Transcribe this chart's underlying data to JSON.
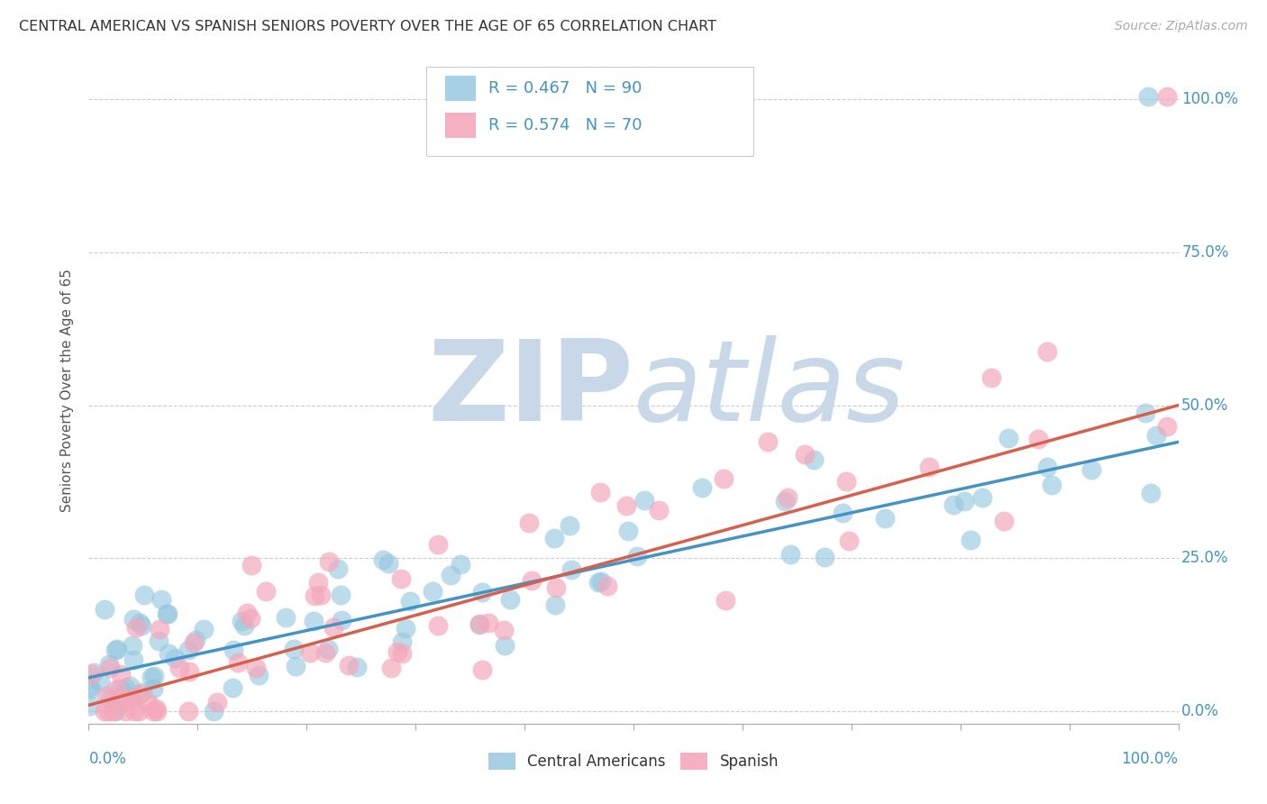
{
  "title": "CENTRAL AMERICAN VS SPANISH SENIORS POVERTY OVER THE AGE OF 65 CORRELATION CHART",
  "source": "Source: ZipAtlas.com",
  "ylabel": "Seniors Poverty Over the Age of 65",
  "blue_R": 0.467,
  "blue_N": 90,
  "pink_R": 0.574,
  "pink_N": 70,
  "blue_color": "#92c5de",
  "pink_color": "#f4a8bb",
  "blue_line_color": "#4393c3",
  "pink_line_color": "#d6604d",
  "legend_blue_label": "Central Americans",
  "legend_pink_label": "Spanish",
  "background_color": "#ffffff",
  "grid_color": "#cccccc",
  "title_fontsize": 11.5,
  "axis_label_fontsize": 11,
  "tick_fontsize": 12,
  "source_fontsize": 10,
  "watermark_zip": "ZIP",
  "watermark_atlas": "atlas",
  "watermark_color": "#c8d8e8",
  "xmin": 0.0,
  "xmax": 1.0,
  "ymin": -0.02,
  "ymax": 1.07,
  "blue_intercept": 0.055,
  "blue_slope": 0.385,
  "pink_intercept": 0.01,
  "pink_slope": 0.49
}
